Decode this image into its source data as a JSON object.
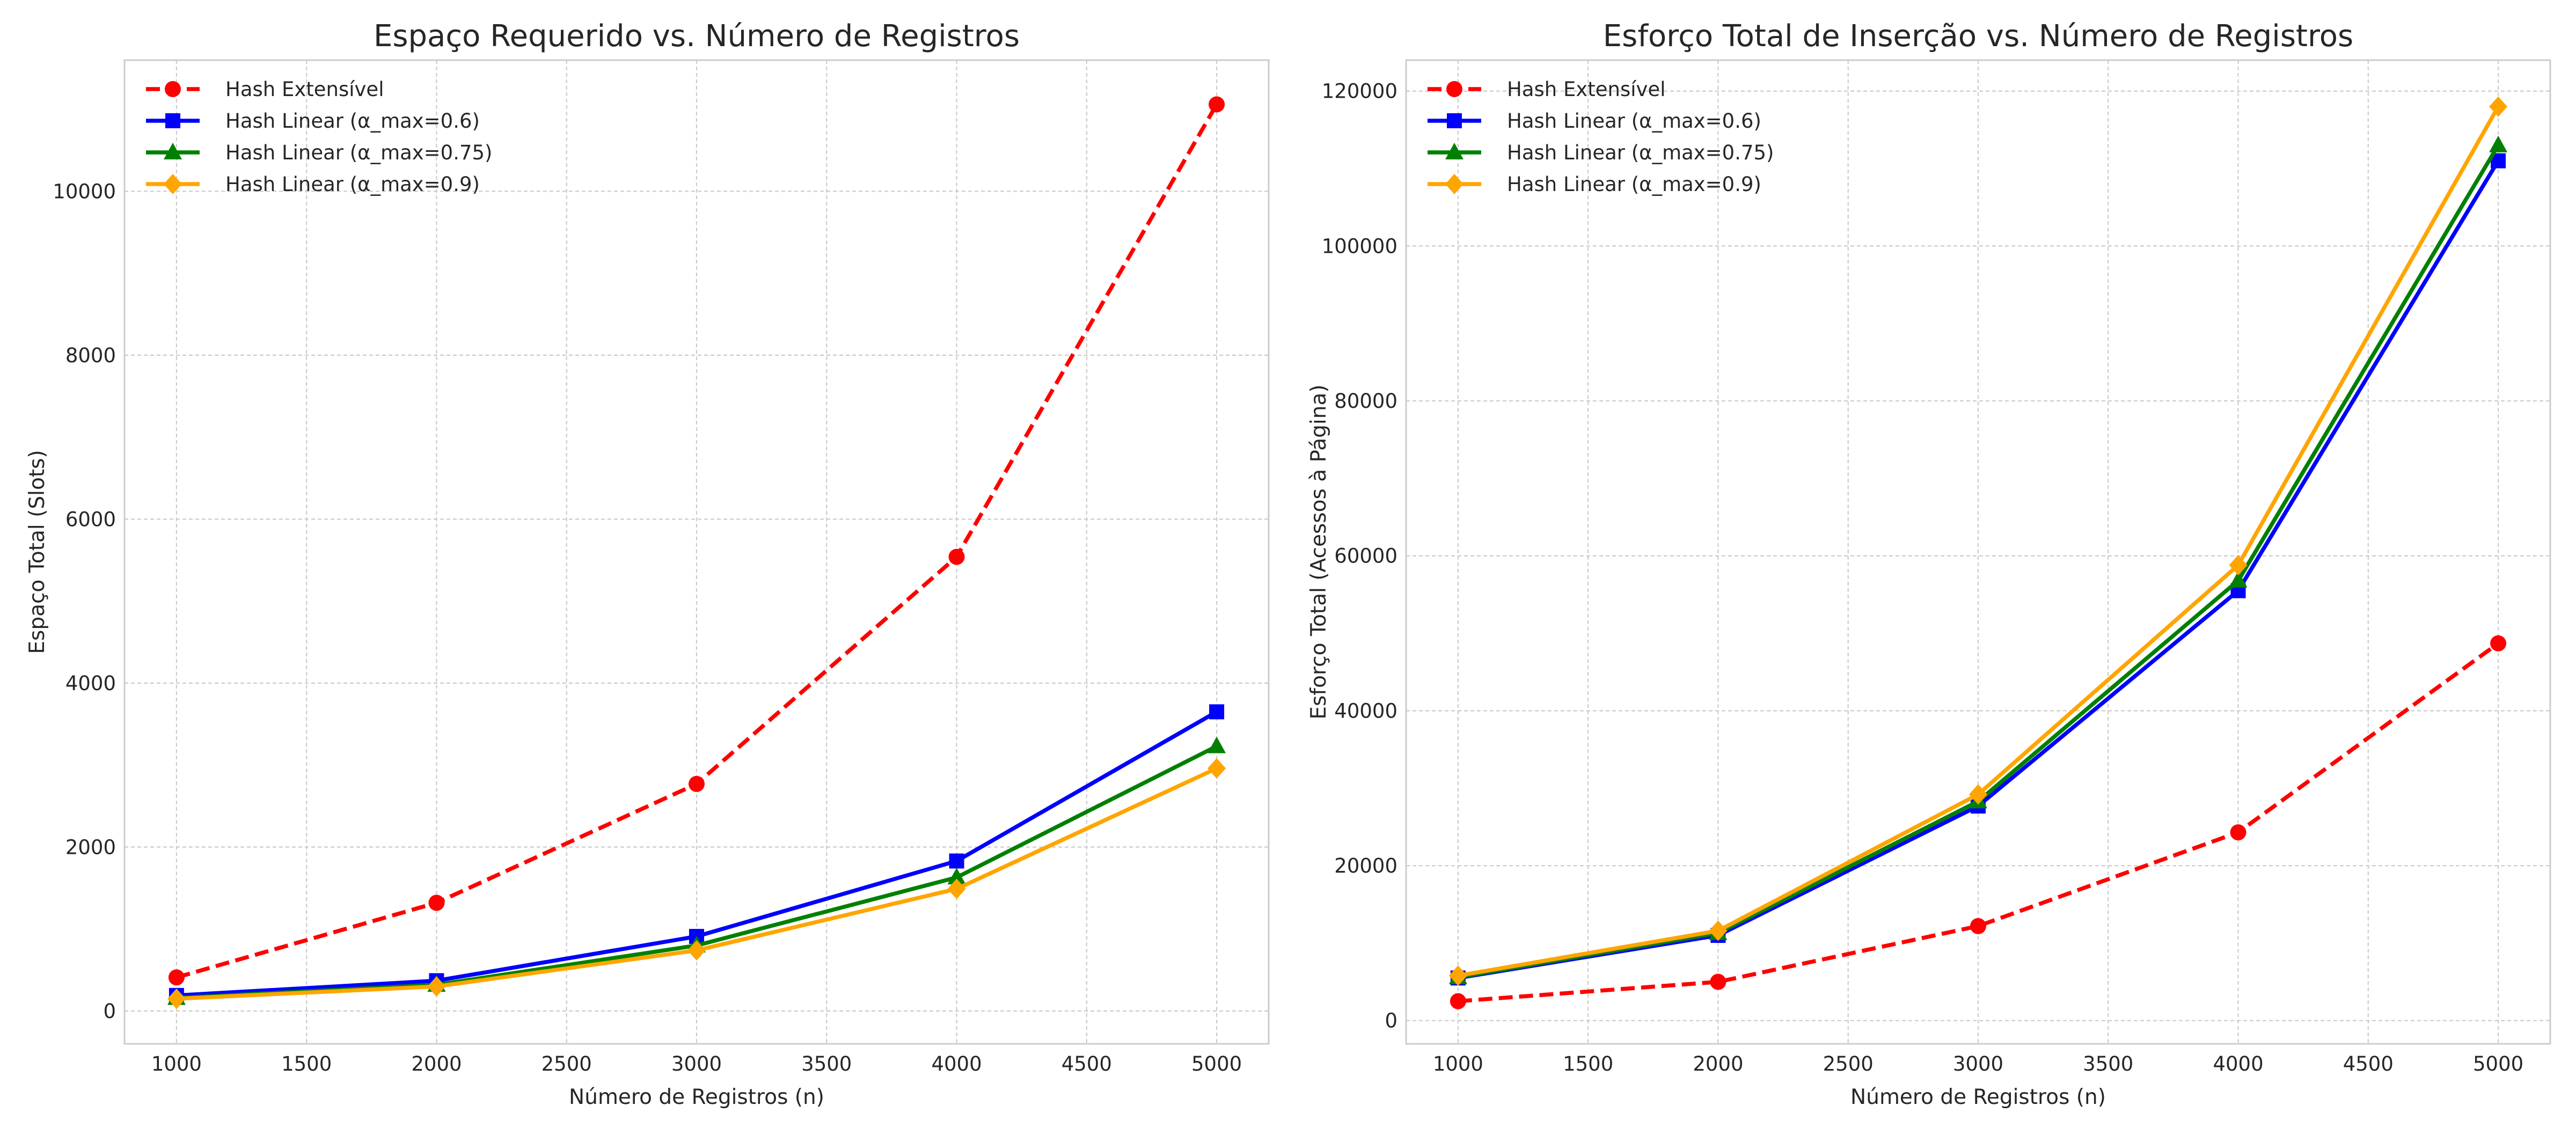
{
  "chart_data": [
    {
      "type": "line",
      "title": "Espaço Requerido vs. Número de Registros",
      "xlabel": "Número de Registros (n)",
      "ylabel": "Espaço Total (Slots)",
      "x": [
        1000,
        2000,
        3000,
        4000,
        5000
      ],
      "xlim": [
        800,
        5200
      ],
      "ylim": [
        -400,
        11600
      ],
      "xticks": [
        1000,
        1500,
        2000,
        2500,
        3000,
        3500,
        4000,
        4500,
        5000
      ],
      "yticks": [
        0,
        2000,
        4000,
        6000,
        8000,
        10000
      ],
      "grid": true,
      "legend_position": "top-left",
      "series": [
        {
          "name": "Hash Extensível",
          "values": [
            410,
            1320,
            2770,
            5540,
            11060
          ],
          "color": "#ff0000",
          "marker": "circle",
          "dashed": true
        },
        {
          "name": "Hash Linear (α_max=0.6)",
          "values": [
            190,
            370,
            910,
            1830,
            3650
          ],
          "color": "#0000ff",
          "marker": "square",
          "dashed": false
        },
        {
          "name": "Hash Linear (α_max=0.75)",
          "values": [
            160,
            320,
            800,
            1630,
            3230
          ],
          "color": "#008000",
          "marker": "triangle",
          "dashed": false
        },
        {
          "name": "Hash Linear (α_max=0.9)",
          "values": [
            150,
            300,
            740,
            1490,
            2960
          ],
          "color": "#ffa500",
          "marker": "diamond",
          "dashed": false
        }
      ]
    },
    {
      "type": "line",
      "title": "Esforço Total de Inserção vs. Número de Registros",
      "xlabel": "Número de Registros (n)",
      "ylabel": "Esforço Total (Acessos à Página)",
      "x": [
        1000,
        2000,
        3000,
        4000,
        5000
      ],
      "xlim": [
        800,
        5200
      ],
      "ylim": [
        -3000,
        124000
      ],
      "xticks": [
        1000,
        1500,
        2000,
        2500,
        3000,
        3500,
        4000,
        4500,
        5000
      ],
      "yticks": [
        0,
        20000,
        40000,
        60000,
        80000,
        100000,
        120000
      ],
      "grid": true,
      "legend_position": "top-left",
      "series": [
        {
          "name": "Hash Extensível",
          "values": [
            2500,
            5000,
            12200,
            24300,
            48700
          ],
          "color": "#ff0000",
          "marker": "circle",
          "dashed": true
        },
        {
          "name": "Hash Linear (α_max=0.6)",
          "values": [
            5500,
            11000,
            27700,
            55500,
            111000
          ],
          "color": "#0000ff",
          "marker": "square",
          "dashed": false
        },
        {
          "name": "Hash Linear (α_max=0.75)",
          "values": [
            5600,
            11300,
            28300,
            56800,
            113000
          ],
          "color": "#008000",
          "marker": "triangle",
          "dashed": false
        },
        {
          "name": "Hash Linear (α_max=0.9)",
          "values": [
            5800,
            11600,
            29200,
            58800,
            118000
          ],
          "color": "#ffa500",
          "marker": "diamond",
          "dashed": false
        }
      ]
    }
  ]
}
